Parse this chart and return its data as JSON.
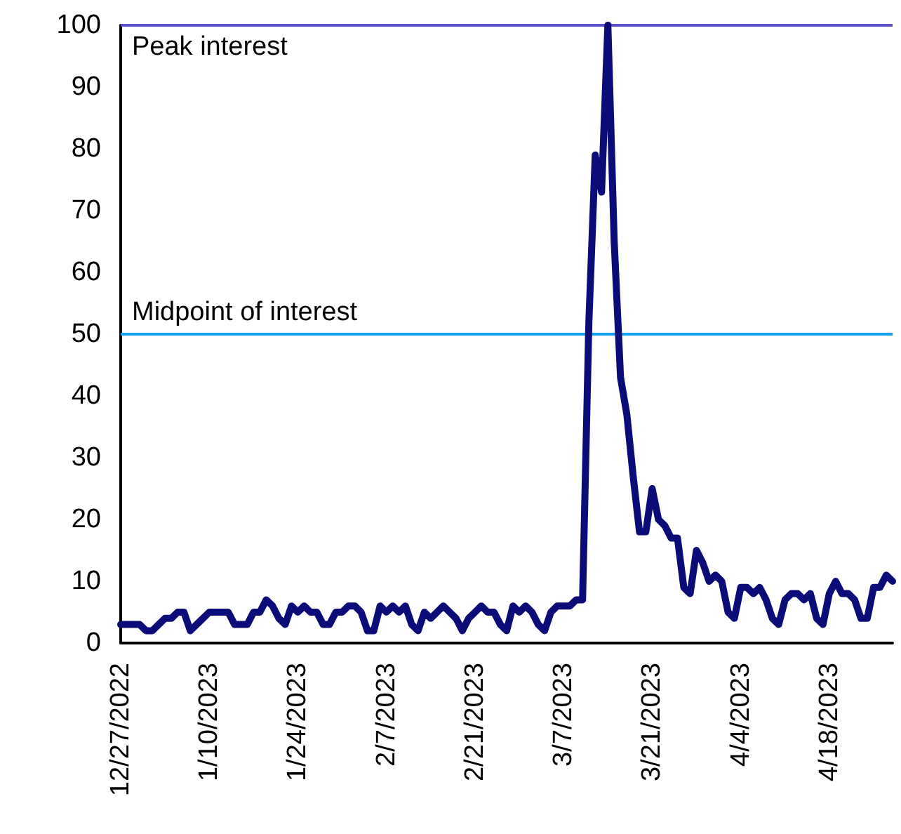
{
  "chart_data": {
    "type": "line",
    "categories": [
      "12/27/2022",
      null,
      null,
      null,
      null,
      null,
      null,
      null,
      null,
      null,
      null,
      null,
      null,
      null,
      "1/10/2023",
      null,
      null,
      null,
      null,
      null,
      null,
      null,
      null,
      null,
      null,
      null,
      null,
      null,
      "1/24/2023",
      null,
      null,
      null,
      null,
      null,
      null,
      null,
      null,
      null,
      null,
      null,
      null,
      null,
      "2/7/2023",
      null,
      null,
      null,
      null,
      null,
      null,
      null,
      null,
      null,
      null,
      null,
      null,
      null,
      "2/21/2023",
      null,
      null,
      null,
      null,
      null,
      null,
      null,
      null,
      null,
      null,
      null,
      null,
      null,
      "3/7/2023",
      null,
      null,
      null,
      null,
      null,
      null,
      null,
      null,
      null,
      null,
      null,
      null,
      null,
      "3/21/2023",
      null,
      null,
      null,
      null,
      null,
      null,
      null,
      null,
      null,
      null,
      null,
      null,
      null,
      "4/4/2023",
      null,
      null,
      null,
      null,
      null,
      null,
      null,
      null,
      null,
      null,
      null,
      null,
      null,
      "4/18/2023",
      null,
      null,
      null,
      null,
      null,
      null,
      null,
      null,
      null,
      null
    ],
    "series": [
      {
        "color": "#0c0c78",
        "values": [
          3,
          3,
          3,
          3,
          2,
          2,
          3,
          4,
          4,
          5,
          5,
          2,
          3,
          4,
          5,
          5,
          5,
          5,
          3,
          3,
          3,
          5,
          5,
          7,
          6,
          4,
          3,
          6,
          5,
          6,
          5,
          5,
          3,
          3,
          5,
          5,
          6,
          6,
          5,
          2,
          2,
          6,
          5,
          6,
          5,
          6,
          3,
          2,
          5,
          4,
          5,
          6,
          5,
          4,
          2,
          4,
          5,
          6,
          5,
          5,
          3,
          2,
          6,
          5,
          6,
          5,
          3,
          2,
          5,
          6,
          6,
          6,
          7,
          7,
          52,
          79,
          73,
          100,
          65,
          43,
          37,
          27,
          18,
          18,
          25,
          20,
          19,
          17,
          17,
          9,
          8,
          15,
          13,
          10,
          11,
          10,
          5,
          4,
          9,
          9,
          8,
          9,
          7,
          4,
          3,
          7,
          8,
          8,
          7,
          8,
          4,
          3,
          8,
          10,
          8,
          8,
          7,
          4,
          4,
          9,
          9,
          11,
          10
        ]
      }
    ],
    "ylim": [
      0,
      100
    ],
    "yticks": [
      0,
      10,
      20,
      30,
      40,
      50,
      60,
      70,
      80,
      90,
      100
    ],
    "grid": false,
    "marker": "none",
    "line_style": "solid",
    "ref_lines": [
      {
        "axis": "y",
        "value": 100,
        "label": "Peak interest",
        "color": "#5a50c8"
      },
      {
        "axis": "y",
        "value": 50,
        "label": "Midpoint of interest",
        "color": "#13a2ef"
      }
    ]
  }
}
